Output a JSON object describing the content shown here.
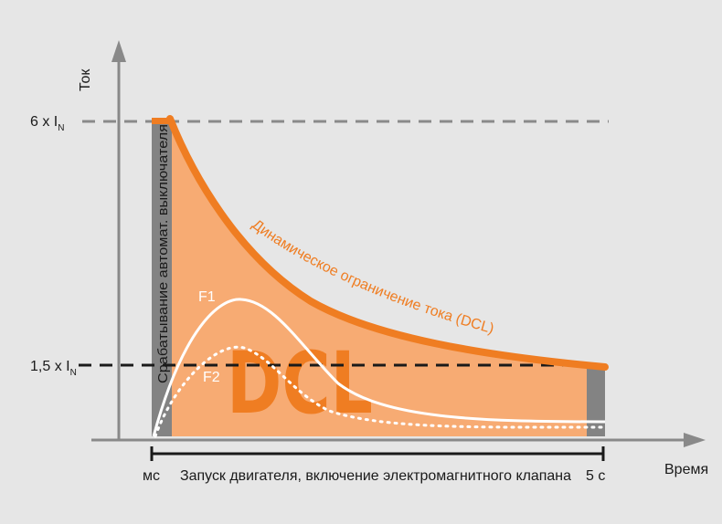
{
  "colors": {
    "background": "#e6e6e6",
    "area": "#f7ab73",
    "curve": "#ef7d22",
    "bar": "#838383",
    "axis": "#898989",
    "dashed_top": "#8a8a8a",
    "dashed_mid": "#1a1a1a",
    "white_curve": "#ffffff",
    "text": "#1a1a1a"
  },
  "axes": {
    "y_label": "Ток",
    "x_label": "Время"
  },
  "levels": {
    "top": {
      "prefix": "6 x I",
      "sub": "N"
    },
    "mid": {
      "prefix": "1,5 x I",
      "sub": "N"
    }
  },
  "time_scale": {
    "start": "мс",
    "end": "5 с",
    "description": "Запуск двигателя, включение электромагнитного клапана"
  },
  "annotations": {
    "breaker": "Срабатывание автомат. выключателя",
    "dcl_curve": "Динамическое ограничение тока (DCL)",
    "f1": "F1",
    "f2": "F2",
    "dcl": "DCL"
  }
}
